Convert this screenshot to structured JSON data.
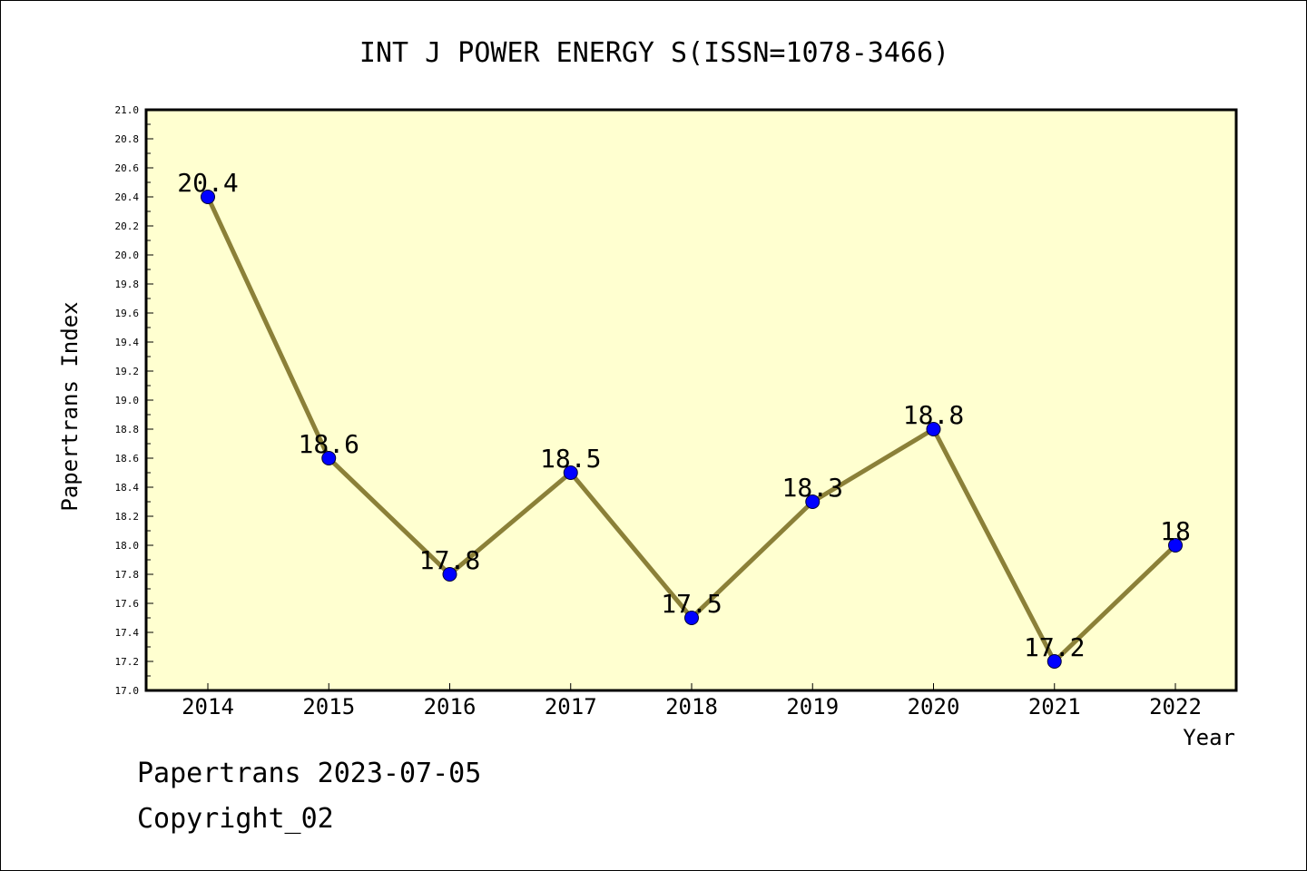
{
  "chart_data": {
    "type": "line",
    "title": "INT J POWER ENERGY S(ISSN=1078-3466)",
    "xlabel": "Year",
    "ylabel": "Papertrans Index",
    "x": [
      "2014",
      "2015",
      "2016",
      "2017",
      "2018",
      "2019",
      "2020",
      "2021",
      "2022"
    ],
    "values": [
      20.4,
      18.6,
      17.8,
      18.5,
      17.5,
      18.3,
      18.8,
      17.2,
      18.0
    ],
    "data_labels": [
      "20.4",
      "18.6",
      "17.8",
      "18.5",
      "17.5",
      "18.3",
      "18.8",
      "17.2",
      "18"
    ],
    "ylim": [
      17.0,
      21.0
    ],
    "y_ticks": [
      "17.0",
      "17.2",
      "17.4",
      "17.6",
      "17.8",
      "18.0",
      "18.2",
      "18.4",
      "18.6",
      "18.8",
      "19.0",
      "19.2",
      "19.4",
      "19.6",
      "19.8",
      "20.0",
      "20.2",
      "20.4",
      "20.6",
      "20.8",
      "21.0"
    ],
    "grid": false,
    "legend": "none",
    "colors": {
      "plot_background": "#ffffd0",
      "line": "#8b8038",
      "marker": "#0000ff",
      "marker_edge": "#000033"
    }
  },
  "footer": {
    "line1": "Papertrans 2023-07-05",
    "line2": "Copyright_02"
  }
}
